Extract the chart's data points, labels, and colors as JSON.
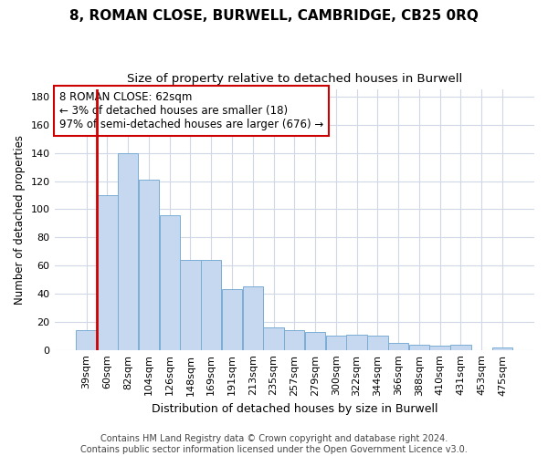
{
  "title": "8, ROMAN CLOSE, BURWELL, CAMBRIDGE, CB25 0RQ",
  "subtitle": "Size of property relative to detached houses in Burwell",
  "xlabel": "Distribution of detached houses by size in Burwell",
  "ylabel": "Number of detached properties",
  "categories": [
    "39sqm",
    "60sqm",
    "82sqm",
    "104sqm",
    "126sqm",
    "148sqm",
    "169sqm",
    "191sqm",
    "213sqm",
    "235sqm",
    "257sqm",
    "279sqm",
    "300sqm",
    "322sqm",
    "344sqm",
    "366sqm",
    "388sqm",
    "410sqm",
    "431sqm",
    "453sqm",
    "475sqm"
  ],
  "values": [
    14,
    110,
    140,
    121,
    96,
    64,
    64,
    43,
    45,
    16,
    14,
    13,
    10,
    11,
    10,
    5,
    4,
    3,
    4,
    0,
    2
  ],
  "bar_color": "#c5d8f0",
  "bar_edge_color": "#7aadd4",
  "highlight_color": "#cc0000",
  "red_line_x": 0.5,
  "ylim": [
    0,
    185
  ],
  "yticks": [
    0,
    20,
    40,
    60,
    80,
    100,
    120,
    140,
    160,
    180
  ],
  "annotation_text": "8 ROMAN CLOSE: 62sqm\n← 3% of detached houses are smaller (18)\n97% of semi-detached houses are larger (676) →",
  "annotation_box_color": "#ffffff",
  "annotation_box_edge": "#cc0000",
  "footer_line1": "Contains HM Land Registry data © Crown copyright and database right 2024.",
  "footer_line2": "Contains public sector information licensed under the Open Government Licence v3.0.",
  "background_color": "#ffffff",
  "grid_color": "#d0d8e8",
  "title_fontsize": 11,
  "subtitle_fontsize": 9.5,
  "xlabel_fontsize": 9,
  "ylabel_fontsize": 8.5,
  "tick_fontsize": 8,
  "annotation_fontsize": 8.5,
  "footer_fontsize": 7
}
